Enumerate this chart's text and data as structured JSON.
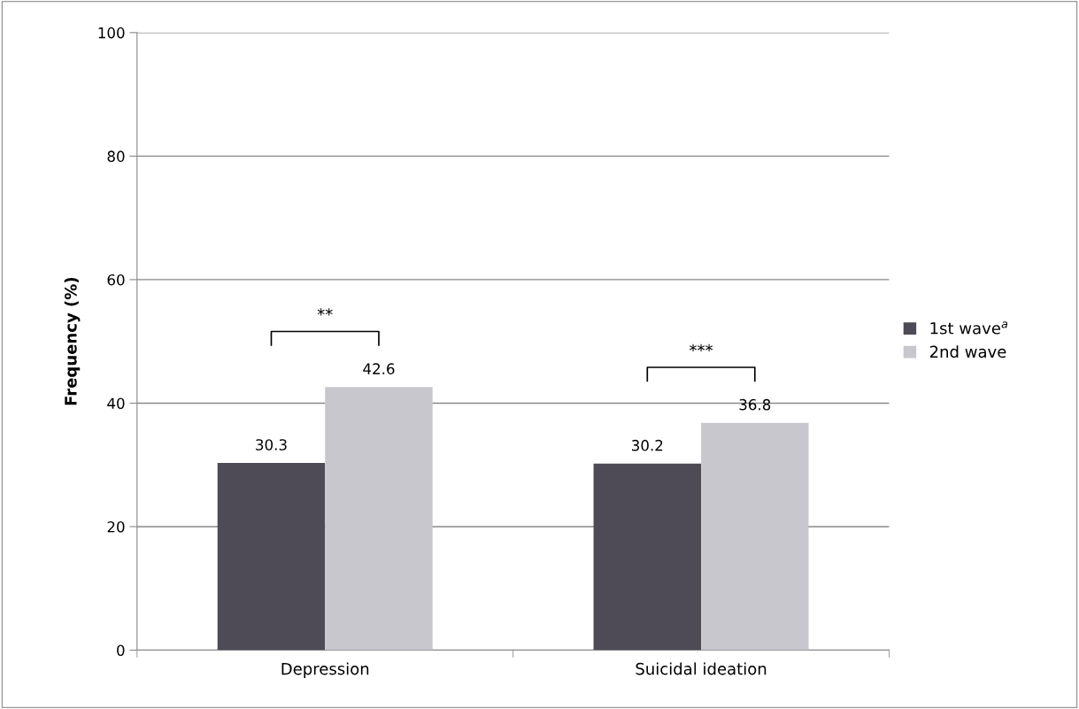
{
  "chart_data": {
    "type": "bar",
    "ylabel": "Frequency (%)",
    "categories": [
      "Depression",
      "Suicidal ideation"
    ],
    "series": [
      {
        "name": "1st wave$^{a}$",
        "color": "#4f4b56",
        "values": [
          30.3,
          30.2
        ]
      },
      {
        "name": "2nd wave",
        "color": "#c9c7ce",
        "values": [
          42.6,
          36.8
        ]
      }
    ],
    "ylim": [
      0,
      100
    ],
    "yticks": [
      0,
      20,
      40,
      60,
      80,
      100
    ],
    "grid": "y",
    "legend": "right",
    "data_labels": true,
    "annotations": [
      "**",
      "***"
    ]
  }
}
